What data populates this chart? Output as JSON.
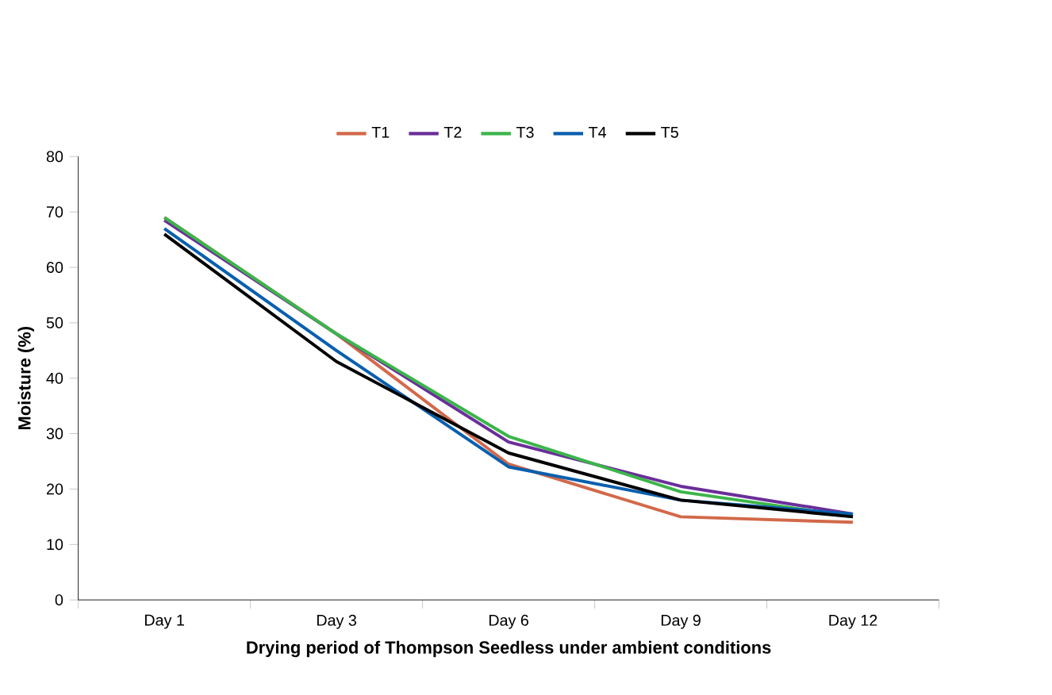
{
  "chart_data": {
    "type": "line",
    "xlabel": "Drying period of Thompson Seedless under ambient conditions",
    "ylabel": "Moisture (%)",
    "categories": [
      "Day 1",
      "Day 3",
      "Day 6",
      "Day 9",
      "Day 12"
    ],
    "series": [
      {
        "name": "T1",
        "color": "#d2694a",
        "values": [
          69,
          48,
          24.5,
          15,
          14
        ]
      },
      {
        "name": "T2",
        "color": "#6a2e9a",
        "values": [
          68.5,
          48,
          28.5,
          20.5,
          15.5
        ]
      },
      {
        "name": "T3",
        "color": "#3bb54a",
        "values": [
          69,
          48,
          29.5,
          19.5,
          15
        ]
      },
      {
        "name": "T4",
        "color": "#0a5fae",
        "values": [
          67,
          45,
          24,
          18,
          15.5
        ]
      },
      {
        "name": "T5",
        "color": "#000000",
        "values": [
          66,
          43,
          26.5,
          18,
          15
        ]
      }
    ],
    "ylim": [
      0,
      80
    ],
    "yticks": [
      0,
      10,
      20,
      30,
      40,
      50,
      60,
      70,
      80
    ],
    "legend": "top",
    "grid": false,
    "marker": "none",
    "line_style": "solid"
  }
}
